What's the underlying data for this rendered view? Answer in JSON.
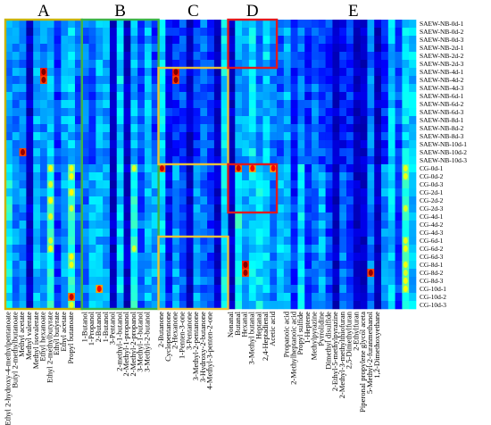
{
  "chart_data": {
    "type": "heatmap",
    "title": "",
    "xlabel": "",
    "ylabel": "",
    "groups": [
      {
        "label": "A",
        "color": "#c8b400",
        "first": 0,
        "last": 10
      },
      {
        "label": "B",
        "color": "#3cb44b",
        "first": 11,
        "last": 21
      },
      {
        "label": "C",
        "color": "#e8c23a",
        "first": 22,
        "last": 31
      },
      {
        "label": "D",
        "color": "#e0191e",
        "first": 32,
        "last": 38
      },
      {
        "label": "E",
        "color": "#4a9be0",
        "first": 39,
        "last": 60
      }
    ],
    "columns": [
      "Ethyl 2-hydroxy-4-methylpentanoate",
      "Butyl 2-methylbutanoate",
      "Methyl acetate",
      "Methyl valerate",
      "Methyl isovalerate",
      "Ethyl hexanoate",
      "Ethyl 2-methylbutyrate",
      "Ethyl butyrate",
      "Ethyl acetate",
      "Propyl butanoate",
      "",
      "1-Butanol",
      "1-Propanol",
      "2-Butanol",
      "1-Butanol",
      "3-Pentanol",
      "2-methyl-1-butanol",
      "2-Methyl-1-propanol",
      "2-Methyl-2-propanol",
      "3-Methyl-1-butanol",
      "3-Methyl-2-butanol",
      "",
      "2-Butanone",
      "Cyclopentanone",
      "2-Hexanone",
      "1-Penten-3-one",
      "3-Pentanone",
      "3-Methyl-2-pentanone",
      "3-Hydroxy-2-butanone",
      "4-Methyl-3-penten-2-one",
      "",
      "",
      "Nonanal",
      "Butanal",
      "Hexanal",
      "3-Methyl butanal",
      "Heptanal",
      "2,4-Heptadienal",
      "Acetic acid",
      "",
      "Propanoic acid",
      "2-Methylheptanoic acid",
      "Propyl sulfide",
      "1-Heptene",
      "Methylpyrazine",
      "Pyrrolidine",
      "Dimethyl disulfide",
      "2-Ethyl-5-methylpyrazine",
      "2-Methyl-3-methylthiofuran",
      "2,5-Dimethylfuran",
      "2-Ethylfuran",
      "Piperonal propylene glycol aceta",
      "5-Methyl-2-furanmethanol",
      "1,2-Dimethoxyethane",
      "",
      "",
      "",
      "",
      ""
    ],
    "rows": [
      "SAEW-NB-0d-1",
      "SAEW-NB-0d-2",
      "SAEW-NB-0d-3",
      "SAEW-NB-2d-1",
      "SAEW-NB-2d-2",
      "SAEW-NB-2d-3",
      "SAEW-NB-4d-1",
      "SAEW-NB-4d-2",
      "SAEW-NB-4d-3",
      "SAEW-NB-6d-1",
      "SAEW-NB-6d-2",
      "SAEW-NB-6d-3",
      "SAEW-NB-8d-1",
      "SAEW-NB-8d-2",
      "SAEW-NB-8d-3",
      "SAEW-NB-10d-1",
      "SAEW-NB-10d-2",
      "SAEW-NB-10d-3",
      "CG-0d-1",
      "CG-0d-2",
      "CG-0d-3",
      "CG-2d-1",
      "CG-2d-2",
      "CG-2d-3",
      "CG-4d-1",
      "CG-4d-2",
      "CG-4d-3",
      "CG-6d-1",
      "CG-6d-2",
      "CG-6d-3",
      "CG-8d-1",
      "CG-8d-2",
      "CG-8d-3",
      "CG-10d-1",
      "CG-10d-2",
      "CG-10d-3"
    ],
    "intensity_scale": {
      "min": 0,
      "max": 1
    },
    "highlight_boxes": [
      {
        "color": "#e8c23a",
        "first_col": 22,
        "last_col": 31,
        "first_row": 6,
        "last_row": 17
      },
      {
        "color": "#e8c23a",
        "first_col": 22,
        "last_col": 31,
        "first_row": 27,
        "last_row": 35
      },
      {
        "color": "#e0191e",
        "first_col": 32,
        "last_col": 38,
        "first_row": 0,
        "last_row": 5
      },
      {
        "color": "#e0191e",
        "first_col": 32,
        "last_col": 38,
        "first_row": 18,
        "last_row": 23
      }
    ],
    "hotspots": [
      {
        "col": 5,
        "row": 6,
        "v": 0.95
      },
      {
        "col": 5,
        "row": 7,
        "v": 0.9
      },
      {
        "col": 24,
        "row": 6,
        "v": 0.95
      },
      {
        "col": 24,
        "row": 7,
        "v": 0.9
      },
      {
        "col": 22,
        "row": 18,
        "v": 0.85
      },
      {
        "col": 33,
        "row": 18,
        "v": 0.85
      },
      {
        "col": 35,
        "row": 18,
        "v": 0.8
      },
      {
        "col": 38,
        "row": 18,
        "v": 0.8
      },
      {
        "col": 34,
        "row": 30,
        "v": 0.95
      },
      {
        "col": 34,
        "row": 31,
        "v": 0.9
      },
      {
        "col": 2,
        "row": 16,
        "v": 0.9
      },
      {
        "col": 52,
        "row": 31,
        "v": 0.9
      },
      {
        "col": 9,
        "row": 34,
        "v": 0.85
      },
      {
        "col": 13,
        "row": 33,
        "v": 0.8
      }
    ]
  }
}
